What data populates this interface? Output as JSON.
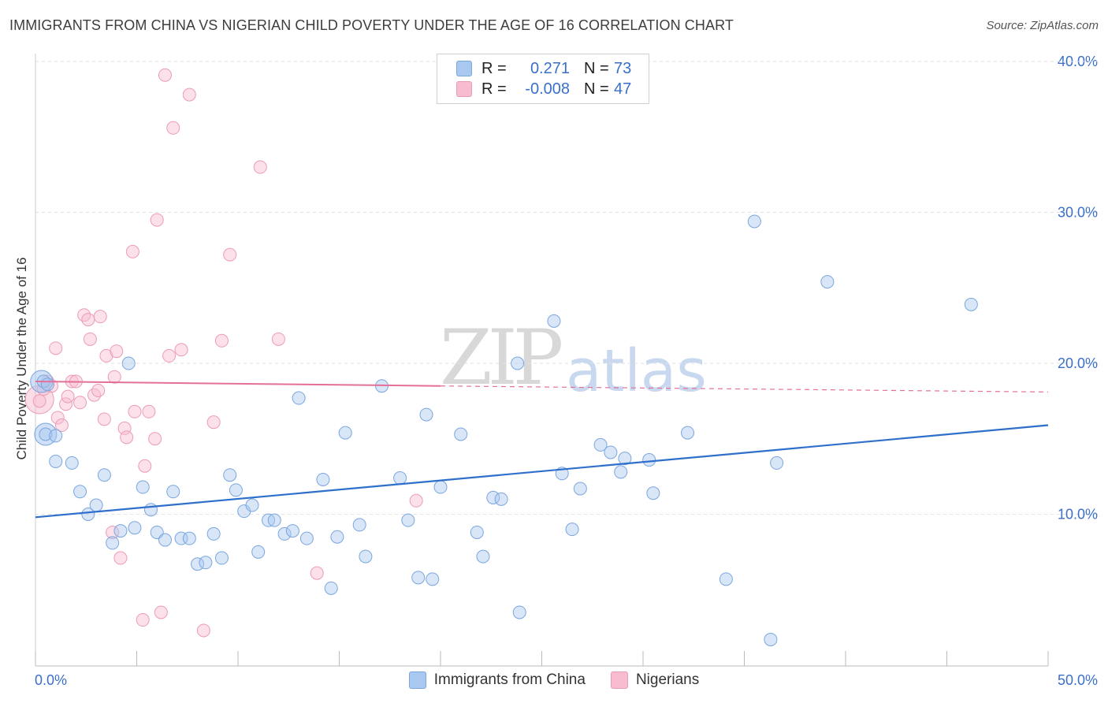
{
  "header": {
    "title": "IMMIGRANTS FROM CHINA VS NIGERIAN CHILD POVERTY UNDER THE AGE OF 16 CORRELATION CHART",
    "source": "Source: ZipAtlas.com"
  },
  "watermark": {
    "zip": "ZIP",
    "atlas": "atlas"
  },
  "legend_top": {
    "rows": [
      {
        "r_label": "R =",
        "r_value": "0.271",
        "n_label": "N =",
        "n_value": "73"
      },
      {
        "r_label": "R =",
        "r_value": "-0.008",
        "n_label": "N =",
        "n_value": "47"
      }
    ]
  },
  "legend_bottom": {
    "items": [
      {
        "label": "Immigrants from China"
      },
      {
        "label": "Nigerians"
      }
    ]
  },
  "colors": {
    "china_fill": "#a9c8f0",
    "china_stroke": "#7aa6de",
    "china_line": "#2f6fcc",
    "nigeria_fill": "#f8bcd0",
    "nigeria_stroke": "#ec9bb6",
    "nigeria_line": "#e4709a",
    "grid": "#e2e2e2",
    "axis_text": "#3a6fc9"
  },
  "chart_data": {
    "type": "scatter",
    "title": "IMMIGRANTS FROM CHINA VS NIGERIAN CHILD POVERTY UNDER THE AGE OF 16 CORRELATION CHART",
    "xlabel": "",
    "ylabel": "Child Poverty Under the Age of 16",
    "xlim": [
      0,
      50
    ],
    "ylim": [
      0,
      40
    ],
    "x_tick_labels": [
      "0.0%",
      "50.0%"
    ],
    "y_ticks": [
      10,
      20,
      30,
      40
    ],
    "y_tick_labels": [
      "10.0%",
      "20.0%",
      "30.0%",
      "40.0%"
    ],
    "grid": true,
    "legend_placement": "top-center",
    "series": [
      {
        "name": "Immigrants from China",
        "trend": {
          "x": [
            0,
            50
          ],
          "y": [
            9.8,
            15.9
          ]
        },
        "points": [
          [
            0.4,
            18.8
          ],
          [
            0.5,
            15.3
          ],
          [
            1.0,
            15.2
          ],
          [
            1.0,
            13.5
          ],
          [
            1.8,
            13.4
          ],
          [
            2.2,
            11.5
          ],
          [
            2.6,
            10.0
          ],
          [
            3.0,
            10.6
          ],
          [
            3.4,
            12.6
          ],
          [
            3.8,
            8.1
          ],
          [
            4.2,
            8.9
          ],
          [
            4.6,
            20.0
          ],
          [
            4.9,
            9.1
          ],
          [
            5.3,
            11.8
          ],
          [
            5.7,
            10.3
          ],
          [
            6.0,
            8.8
          ],
          [
            6.4,
            8.3
          ],
          [
            6.8,
            11.5
          ],
          [
            7.2,
            8.4
          ],
          [
            7.6,
            8.4
          ],
          [
            8.0,
            6.7
          ],
          [
            8.4,
            6.8
          ],
          [
            8.8,
            8.7
          ],
          [
            9.2,
            7.1
          ],
          [
            9.6,
            12.6
          ],
          [
            9.9,
            11.6
          ],
          [
            10.3,
            10.2
          ],
          [
            10.7,
            10.6
          ],
          [
            11.0,
            7.5
          ],
          [
            11.5,
            9.6
          ],
          [
            11.8,
            9.6
          ],
          [
            12.3,
            8.7
          ],
          [
            12.7,
            8.9
          ],
          [
            13.0,
            17.7
          ],
          [
            13.4,
            8.4
          ],
          [
            14.2,
            12.3
          ],
          [
            14.6,
            5.1
          ],
          [
            14.9,
            8.5
          ],
          [
            15.3,
            15.4
          ],
          [
            16.0,
            9.3
          ],
          [
            16.3,
            7.2
          ],
          [
            17.1,
            18.5
          ],
          [
            18.0,
            12.4
          ],
          [
            18.4,
            9.6
          ],
          [
            18.9,
            5.8
          ],
          [
            19.3,
            16.6
          ],
          [
            19.6,
            5.7
          ],
          [
            20.0,
            11.8
          ],
          [
            21.0,
            15.3
          ],
          [
            21.8,
            8.8
          ],
          [
            22.1,
            7.2
          ],
          [
            22.6,
            11.1
          ],
          [
            23.0,
            11.0
          ],
          [
            23.8,
            20.0
          ],
          [
            23.9,
            3.5
          ],
          [
            25.6,
            22.8
          ],
          [
            26.0,
            12.7
          ],
          [
            26.5,
            9.0
          ],
          [
            26.9,
            11.7
          ],
          [
            27.9,
            14.6
          ],
          [
            28.4,
            14.1
          ],
          [
            28.9,
            12.8
          ],
          [
            29.1,
            13.7
          ],
          [
            30.3,
            13.6
          ],
          [
            30.5,
            11.4
          ],
          [
            32.2,
            15.4
          ],
          [
            34.1,
            5.7
          ],
          [
            35.5,
            29.4
          ],
          [
            36.3,
            1.7
          ],
          [
            36.6,
            13.4
          ],
          [
            39.1,
            25.4
          ],
          [
            46.2,
            23.9
          ],
          [
            0.6,
            18.6
          ]
        ],
        "large_points": [
          [
            0.3,
            18.8
          ],
          [
            0.5,
            15.3
          ]
        ]
      },
      {
        "name": "Nigerians",
        "trend": {
          "x": [
            0,
            20
          ],
          "y": [
            18.8,
            18.5
          ]
        },
        "trend_dashed": {
          "x": [
            20,
            50
          ],
          "y": [
            18.5,
            18.1
          ]
        },
        "points": [
          [
            0.2,
            17.5
          ],
          [
            0.4,
            18.3
          ],
          [
            0.6,
            18.8
          ],
          [
            0.8,
            18.5
          ],
          [
            1.0,
            21.0
          ],
          [
            1.1,
            16.4
          ],
          [
            1.3,
            15.9
          ],
          [
            1.5,
            17.3
          ],
          [
            1.6,
            17.8
          ],
          [
            1.8,
            18.8
          ],
          [
            2.0,
            18.8
          ],
          [
            2.2,
            17.4
          ],
          [
            2.4,
            23.2
          ],
          [
            2.6,
            22.9
          ],
          [
            2.7,
            21.6
          ],
          [
            2.9,
            17.9
          ],
          [
            3.1,
            18.2
          ],
          [
            3.2,
            23.1
          ],
          [
            3.4,
            16.3
          ],
          [
            3.5,
            20.5
          ],
          [
            3.8,
            8.8
          ],
          [
            3.9,
            19.1
          ],
          [
            4.0,
            20.8
          ],
          [
            4.2,
            7.1
          ],
          [
            4.4,
            15.7
          ],
          [
            4.5,
            15.1
          ],
          [
            4.8,
            27.4
          ],
          [
            4.9,
            16.8
          ],
          [
            5.3,
            3.0
          ],
          [
            5.4,
            13.2
          ],
          [
            5.6,
            16.8
          ],
          [
            5.9,
            15.0
          ],
          [
            6.0,
            29.5
          ],
          [
            6.2,
            3.5
          ],
          [
            6.4,
            39.1
          ],
          [
            6.6,
            20.5
          ],
          [
            6.8,
            35.6
          ],
          [
            7.2,
            20.9
          ],
          [
            7.6,
            37.8
          ],
          [
            8.3,
            2.3
          ],
          [
            8.8,
            16.1
          ],
          [
            9.2,
            21.5
          ],
          [
            9.6,
            27.2
          ],
          [
            11.1,
            33.0
          ],
          [
            12.0,
            21.6
          ],
          [
            13.9,
            6.1
          ],
          [
            18.8,
            10.9
          ]
        ],
        "large_points": [
          [
            0.2,
            17.6
          ]
        ]
      }
    ]
  }
}
